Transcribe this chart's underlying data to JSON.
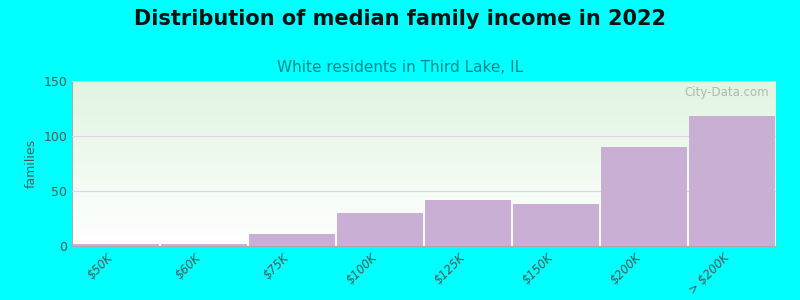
{
  "title": "Distribution of median family income in 2022",
  "subtitle": "White residents in Third Lake, IL",
  "categories": [
    "$50K",
    "$60K",
    "$75K",
    "$100K",
    "$125K",
    "$150K",
    "$200K",
    "> $200K"
  ],
  "values": [
    2,
    2,
    11,
    30,
    42,
    38,
    90,
    118
  ],
  "bar_color": "#c9afd4",
  "bar_edge_color": "#c9afd4",
  "background_color": "#00FFFF",
  "ylabel": "families",
  "ylim": [
    0,
    150
  ],
  "yticks": [
    0,
    50,
    100,
    150
  ],
  "title_fontsize": 15,
  "subtitle_fontsize": 11,
  "subtitle_color": "#008888",
  "watermark": "City-Data.com",
  "watermark_color": "#aaaaaa",
  "grid_color": "#e0d0e8",
  "title_color": "#111111"
}
